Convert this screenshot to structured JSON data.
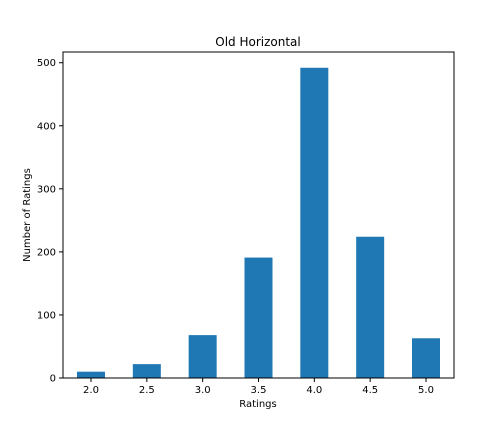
{
  "chart_data": {
    "type": "bar",
    "title": "Old Horizontal",
    "xlabel": "Ratings",
    "ylabel": "Number of Ratings",
    "categories": [
      "2.0",
      "2.5",
      "3.0",
      "3.5",
      "4.0",
      "4.5",
      "5.0"
    ],
    "values": [
      10,
      22,
      68,
      191,
      492,
      224,
      63
    ],
    "ylim": [
      0,
      517
    ],
    "yticks": [
      0,
      100,
      200,
      300,
      400,
      500
    ],
    "grid": false,
    "legend": "none",
    "bar_color": "#1f77b4"
  }
}
